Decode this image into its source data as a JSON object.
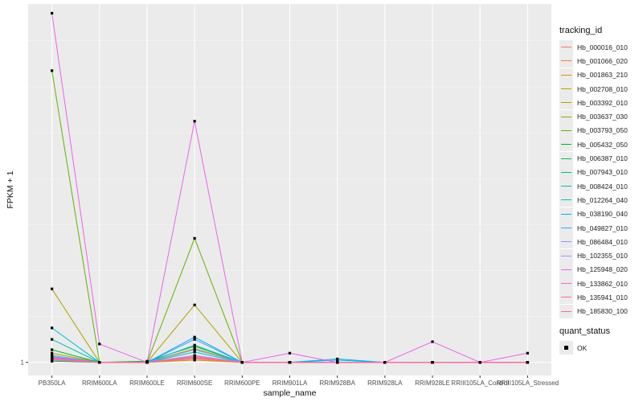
{
  "chart_data": {
    "type": "line",
    "xlabel": "sample_name",
    "ylabel": "FPKM + 1",
    "y_ticks": [
      {
        "label": "1",
        "value": 1
      }
    ],
    "ylim": [
      0.43,
      16.6
    ],
    "grid": true,
    "legend_placement": "right",
    "categories": [
      "PB350LA",
      "RRIM600LA",
      "RRIM600LE",
      "RRIM600SE",
      "RRIM600PE",
      "RRIM901LA",
      "RRIM928BA",
      "RRIM928LA",
      "RRIM928LE",
      "RRIII105LA_Control",
      "RRIII105LA_Stressed"
    ],
    "legend_title": "tracking_id",
    "series": [
      {
        "name": "Hb_000016_010",
        "color": "#F8766D",
        "values": [
          1.1,
          1,
          1,
          1.15,
          1,
          1,
          1,
          1,
          1,
          1,
          1
        ]
      },
      {
        "name": "Hb_001066_020",
        "color": "#EC8239",
        "values": [
          1.2,
          1,
          1,
          1.2,
          1,
          1,
          1,
          1,
          1,
          1,
          1
        ]
      },
      {
        "name": "Hb_001863_210",
        "color": "#DB8E00",
        "values": [
          1.3,
          1,
          1,
          1.25,
          1,
          1,
          1,
          1,
          1,
          1,
          1
        ]
      },
      {
        "name": "Hb_002708_010",
        "color": "#C79800",
        "values": [
          1.15,
          1,
          1,
          1.1,
          1,
          1,
          1,
          1,
          1,
          1,
          1
        ]
      },
      {
        "name": "Hb_003392_010",
        "color": "#AEA200",
        "values": [
          4.2,
          1,
          1,
          3.5,
          1,
          1,
          1,
          1,
          1,
          1,
          1
        ]
      },
      {
        "name": "Hb_003637_030",
        "color": "#8FAA00",
        "values": [
          1.4,
          1,
          1,
          1.6,
          1,
          1,
          1,
          1,
          1,
          1,
          1
        ]
      },
      {
        "name": "Hb_003793_050",
        "color": "#64B200",
        "values": [
          13.7,
          1,
          1,
          6.4,
          1,
          1,
          1,
          1,
          1,
          1,
          1
        ]
      },
      {
        "name": "Hb_005432_050",
        "color": "#00B81B",
        "values": [
          1.55,
          1,
          1.05,
          1.7,
          1,
          1,
          1,
          1,
          1,
          1,
          1
        ]
      },
      {
        "name": "Hb_006387_010",
        "color": "#00BD5C",
        "values": [
          1.05,
          1,
          1,
          1.3,
          1,
          1,
          1,
          1,
          1,
          1,
          1
        ]
      },
      {
        "name": "Hb_007943_010",
        "color": "#00C08B",
        "values": [
          1.1,
          1,
          1,
          1.2,
          1,
          1,
          1,
          1,
          1,
          1,
          1
        ]
      },
      {
        "name": "Hb_008424_010",
        "color": "#00BFB1",
        "values": [
          2.0,
          1,
          1,
          1.45,
          1,
          1,
          1,
          1,
          1,
          1,
          1
        ]
      },
      {
        "name": "Hb_012264_040",
        "color": "#00BBD6",
        "values": [
          2.5,
          1,
          1,
          1.75,
          1,
          1,
          1.15,
          1,
          1,
          1,
          1
        ]
      },
      {
        "name": "Hb_038190_040",
        "color": "#00B0F6",
        "values": [
          1.2,
          1,
          1,
          2.1,
          1,
          1,
          1.1,
          1,
          1,
          1,
          1
        ]
      },
      {
        "name": "Hb_049827_010",
        "color": "#3DA1FF",
        "values": [
          1.25,
          1,
          1,
          2.0,
          1,
          1,
          1,
          1,
          1,
          1,
          1
        ]
      },
      {
        "name": "Hb_086484_010",
        "color": "#8F91FF",
        "values": [
          1.3,
          1,
          1,
          1.55,
          1,
          1,
          1,
          1,
          1,
          1,
          1
        ]
      },
      {
        "name": "Hb_102355_010",
        "color": "#C77CFF",
        "values": [
          1.15,
          1,
          1,
          1.3,
          1,
          1,
          1,
          1,
          1,
          1,
          1
        ]
      },
      {
        "name": "Hb_125948_020",
        "color": "#EE61EF",
        "values": [
          16.2,
          1.8,
          1,
          11.5,
          1,
          1.4,
          1,
          1,
          1.9,
          1,
          1.4
        ]
      },
      {
        "name": "Hb_133862_010",
        "color": "#FF61C7",
        "values": [
          1.2,
          1,
          1,
          1.2,
          1,
          1,
          1,
          1,
          1,
          1,
          1
        ]
      },
      {
        "name": "Hb_135941_010",
        "color": "#FF6C90",
        "values": [
          1.1,
          1,
          1,
          1.25,
          1,
          1,
          1,
          1,
          1,
          1,
          1
        ]
      },
      {
        "name": "Hb_185830_100",
        "color": "#FF6A98",
        "values": [
          1.15,
          1,
          1,
          1.2,
          1,
          1,
          1,
          1,
          1,
          1,
          1
        ]
      }
    ],
    "legend2": {
      "title": "quant_status",
      "items": [
        "OK"
      ]
    }
  }
}
